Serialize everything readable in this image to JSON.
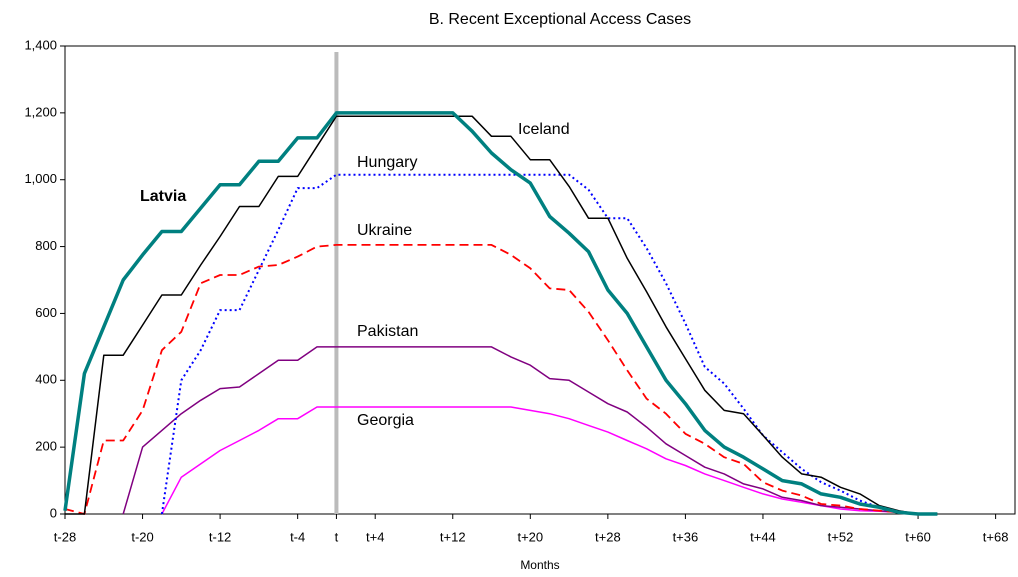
{
  "chart_data": {
    "type": "line",
    "title": "B. Recent Exceptional Access Cases",
    "x_label": "Months",
    "x": [
      -28,
      -26,
      -24,
      -22,
      -20,
      -18,
      -16,
      -14,
      -12,
      -10,
      -8,
      -6,
      -4,
      -2,
      0,
      2,
      4,
      6,
      8,
      10,
      12,
      14,
      16,
      18,
      20,
      22,
      24,
      26,
      28,
      30,
      32,
      34,
      36,
      38,
      40,
      42,
      44,
      46,
      48,
      50,
      52,
      54,
      56,
      58,
      60,
      62
    ],
    "xlim": [
      -28,
      70
    ],
    "xticks": [
      {
        "value": -28,
        "label": "t-28"
      },
      {
        "value": -20,
        "label": "t-20"
      },
      {
        "value": -12,
        "label": "t-12"
      },
      {
        "value": -4,
        "label": "t-4"
      },
      {
        "value": 0,
        "label": "t"
      },
      {
        "value": 4,
        "label": "t+4"
      },
      {
        "value": 12,
        "label": "t+12"
      },
      {
        "value": 20,
        "label": "t+20"
      },
      {
        "value": 28,
        "label": "t+28"
      },
      {
        "value": 36,
        "label": "t+36"
      },
      {
        "value": 44,
        "label": "t+44"
      },
      {
        "value": 52,
        "label": "t+52"
      },
      {
        "value": 60,
        "label": "t+60"
      },
      {
        "value": 68,
        "label": "t+68"
      }
    ],
    "ylim": [
      0,
      1400
    ],
    "yticks": [
      0,
      200,
      400,
      600,
      800,
      {
        "value": 1000,
        "label": "1,000"
      },
      {
        "value": 1200,
        "label": "1,200"
      },
      {
        "value": 1400,
        "label": "1,400"
      }
    ],
    "vline": 0,
    "series": [
      {
        "name": "Latvia",
        "color": "#008080",
        "width": 3.5,
        "dash": "solid",
        "bold": true,
        "values": [
          10,
          420,
          560,
          700,
          775,
          845,
          845,
          915,
          985,
          985,
          1055,
          1055,
          1125,
          1125,
          1200,
          1200,
          1200,
          1200,
          1200,
          1200,
          1200,
          1145,
          1080,
          1030,
          990,
          890,
          840,
          785,
          670,
          600,
          500,
          400,
          330,
          250,
          200,
          170,
          135,
          100,
          90,
          60,
          50,
          30,
          20,
          5,
          0,
          0
        ]
      },
      {
        "name": "Iceland",
        "color": "#000000",
        "width": 1.5,
        "dash": "solid",
        "values": [
          0,
          0,
          475,
          475,
          565,
          655,
          655,
          745,
          830,
          920,
          920,
          1010,
          1010,
          1100,
          1190,
          1190,
          1190,
          1190,
          1190,
          1190,
          1190,
          1190,
          1130,
          1130,
          1060,
          1060,
          980,
          885,
          885,
          765,
          665,
          560,
          465,
          370,
          310,
          300,
          235,
          170,
          120,
          110,
          80,
          60,
          25,
          10,
          0,
          0
        ]
      },
      {
        "name": "Hungary",
        "color": "#0000ff",
        "width": 2,
        "dash": "dotted",
        "values": [
          null,
          null,
          null,
          null,
          null,
          0,
          400,
          490,
          610,
          610,
          730,
          850,
          975,
          975,
          1015,
          1015,
          1015,
          1015,
          1015,
          1015,
          1015,
          1015,
          1015,
          1015,
          1015,
          1015,
          1015,
          970,
          885,
          885,
          795,
          690,
          570,
          440,
          390,
          315,
          235,
          185,
          135,
          95,
          70,
          40,
          20,
          5,
          0,
          0
        ]
      },
      {
        "name": "Ukraine",
        "color": "#ff0000",
        "width": 1.8,
        "dash": "dashed",
        "values": [
          15,
          0,
          220,
          220,
          310,
          490,
          545,
          690,
          715,
          715,
          740,
          745,
          770,
          800,
          805,
          805,
          805,
          805,
          805,
          805,
          805,
          805,
          805,
          775,
          735,
          675,
          670,
          605,
          520,
          430,
          345,
          300,
          240,
          210,
          170,
          150,
          95,
          70,
          55,
          30,
          25,
          15,
          10,
          5,
          0,
          0
        ]
      },
      {
        "name": "Pakistan",
        "color": "#800080",
        "width": 1.5,
        "dash": "solid",
        "values": [
          null,
          null,
          null,
          0,
          200,
          250,
          300,
          340,
          375,
          380,
          420,
          460,
          460,
          500,
          500,
          500,
          500,
          500,
          500,
          500,
          500,
          500,
          500,
          470,
          445,
          405,
          400,
          365,
          330,
          305,
          260,
          210,
          175,
          140,
          120,
          90,
          75,
          50,
          40,
          25,
          20,
          15,
          10,
          5,
          0,
          0
        ]
      },
      {
        "name": "Georgia",
        "color": "#ff00ff",
        "width": 1.5,
        "dash": "solid",
        "values": [
          null,
          null,
          null,
          null,
          null,
          0,
          110,
          150,
          190,
          220,
          250,
          285,
          285,
          320,
          320,
          320,
          320,
          320,
          320,
          320,
          320,
          320,
          320,
          320,
          310,
          300,
          285,
          265,
          245,
          220,
          195,
          165,
          145,
          120,
          100,
          80,
          60,
          45,
          35,
          25,
          15,
          10,
          8,
          5,
          0,
          0
        ]
      }
    ]
  }
}
